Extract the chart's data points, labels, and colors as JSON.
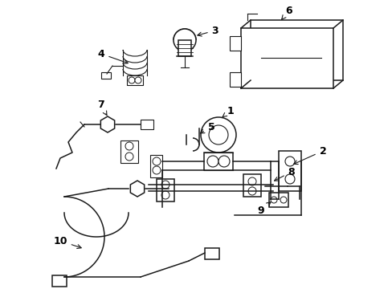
{
  "background_color": "#ffffff",
  "line_color": "#1a1a1a",
  "figsize": [
    4.89,
    3.6
  ],
  "dpi": 100,
  "border_color": "#cccccc"
}
